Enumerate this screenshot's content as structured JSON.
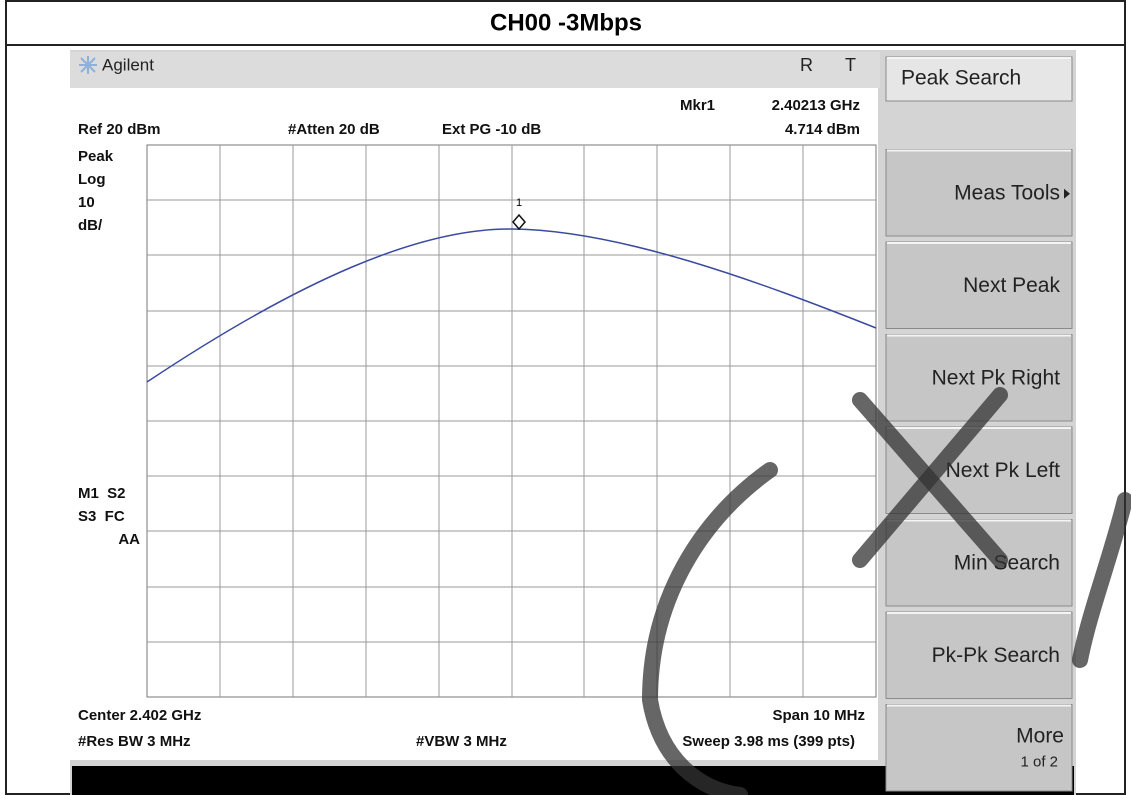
{
  "title": "CH00 -3Mbps",
  "header": {
    "brand": "Agilent",
    "indicators": [
      "R",
      "T"
    ]
  },
  "marker": {
    "label": "Mkr1",
    "frequency": "2.40213 GHz",
    "level": "4.714 dBm",
    "number": "1"
  },
  "settings": {
    "reference": "Ref 20 dBm",
    "attenuation": "#Atten 20 dB",
    "external_gain": "Ext PG -10 dB"
  },
  "scale": [
    "Peak",
    "Log",
    "10",
    "dB/"
  ],
  "flags": [
    "M1  S2",
    "S3  FC",
    "AA"
  ],
  "footer": {
    "center": "Center 2.402 GHz",
    "span": "Span 10 MHz",
    "rbw": "#Res BW 3 MHz",
    "vbw": "#VBW 3 MHz",
    "sweep": "Sweep 3.98 ms (399 pts)"
  },
  "softkeys": [
    {
      "label": "Peak Search"
    },
    {
      "label": "Meas Tools"
    },
    {
      "label": "Next Peak"
    },
    {
      "label": "Next Pk Right"
    },
    {
      "label": "Next Pk Left"
    },
    {
      "label": "Min Search"
    },
    {
      "label": "Pk-Pk Search"
    },
    {
      "label": "More",
      "sub": "1 of 2"
    }
  ]
}
